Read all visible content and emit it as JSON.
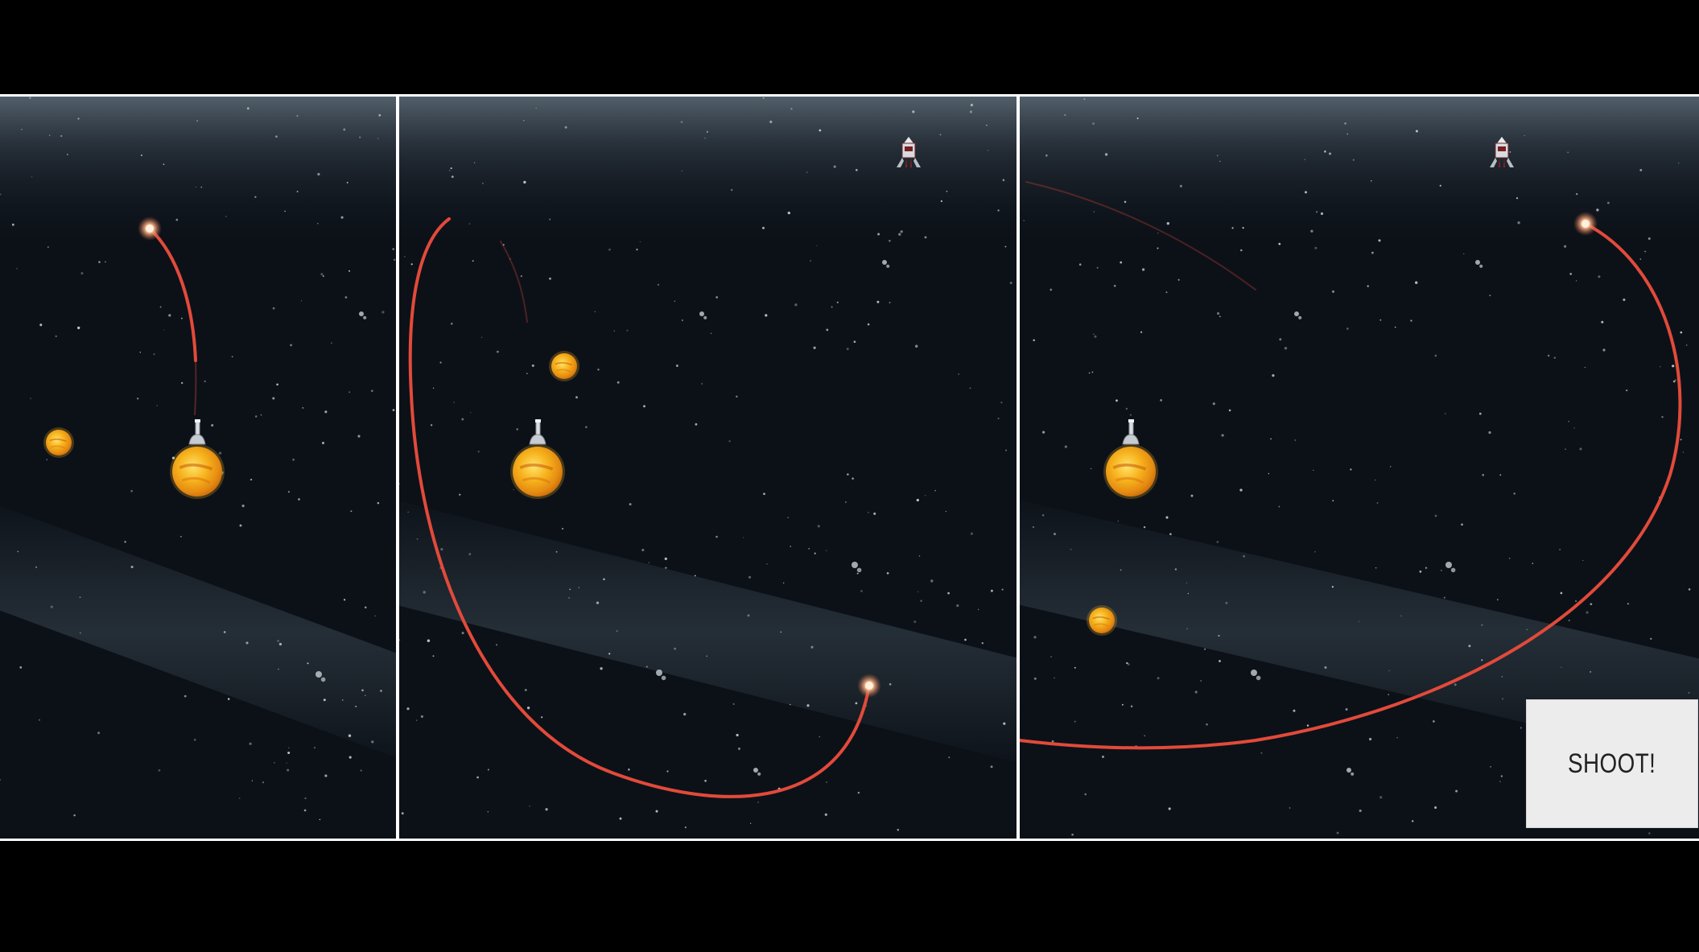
{
  "game": {
    "shoot_label": "SHOOT!",
    "panel_count": 3
  },
  "colors": {
    "background": "#000000",
    "space": "#0c1118",
    "trajectory": "#e24a3a",
    "planet": "#f6b21c",
    "divider": "#ffffff",
    "button": "#ececec"
  },
  "icons": [
    "planet-icon",
    "cannon-icon",
    "rocket-target-icon",
    "projectile-icon",
    "asteroid-icon"
  ]
}
